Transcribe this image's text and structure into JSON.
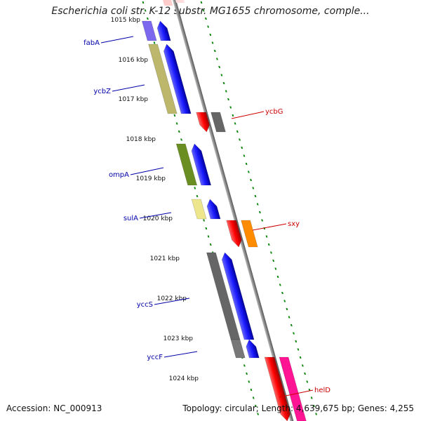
{
  "title": "Escherichia coli str. K-12 substr. MG1655 chromosome, comple...",
  "footer": {
    "accession": "Accession: NC_000913",
    "summary": "Topology: circular; Length: 4,639,675 bp; Genes: 4,255"
  },
  "colors": {
    "label_left": "#0000aa",
    "label_right": "#cc0000",
    "tick": "#118811",
    "backbone": "#888888"
  },
  "kbp_ticks": [
    "1015 kbp",
    "1016 kbp",
    "1017 kbp",
    "1018 kbp",
    "1019 kbp",
    "1020 kbp",
    "1021 kbp",
    "1022 kbp",
    "1023 kbp",
    "1024 kbp"
  ],
  "genes": [
    {
      "name": "fabA",
      "strand": "minus",
      "color": "#7b68ee"
    },
    {
      "name": "ycbZ",
      "strand": "minus",
      "color": "#bdb76b"
    },
    {
      "name": "ompA",
      "strand": "minus",
      "color": "#6b8e23"
    },
    {
      "name": "sulA",
      "strand": "minus",
      "color": "#eee68c"
    },
    {
      "name": "yccS",
      "strand": "minus",
      "color": "#666666"
    },
    {
      "name": "yccF",
      "strand": "minus",
      "color": "#777777"
    },
    {
      "name": "ycbG",
      "strand": "plus",
      "color": "#666666"
    },
    {
      "name": "sxy",
      "strand": "plus",
      "color": "#ff8c00"
    },
    {
      "name": "helD",
      "strand": "plus",
      "color": "#ff1493"
    }
  ]
}
